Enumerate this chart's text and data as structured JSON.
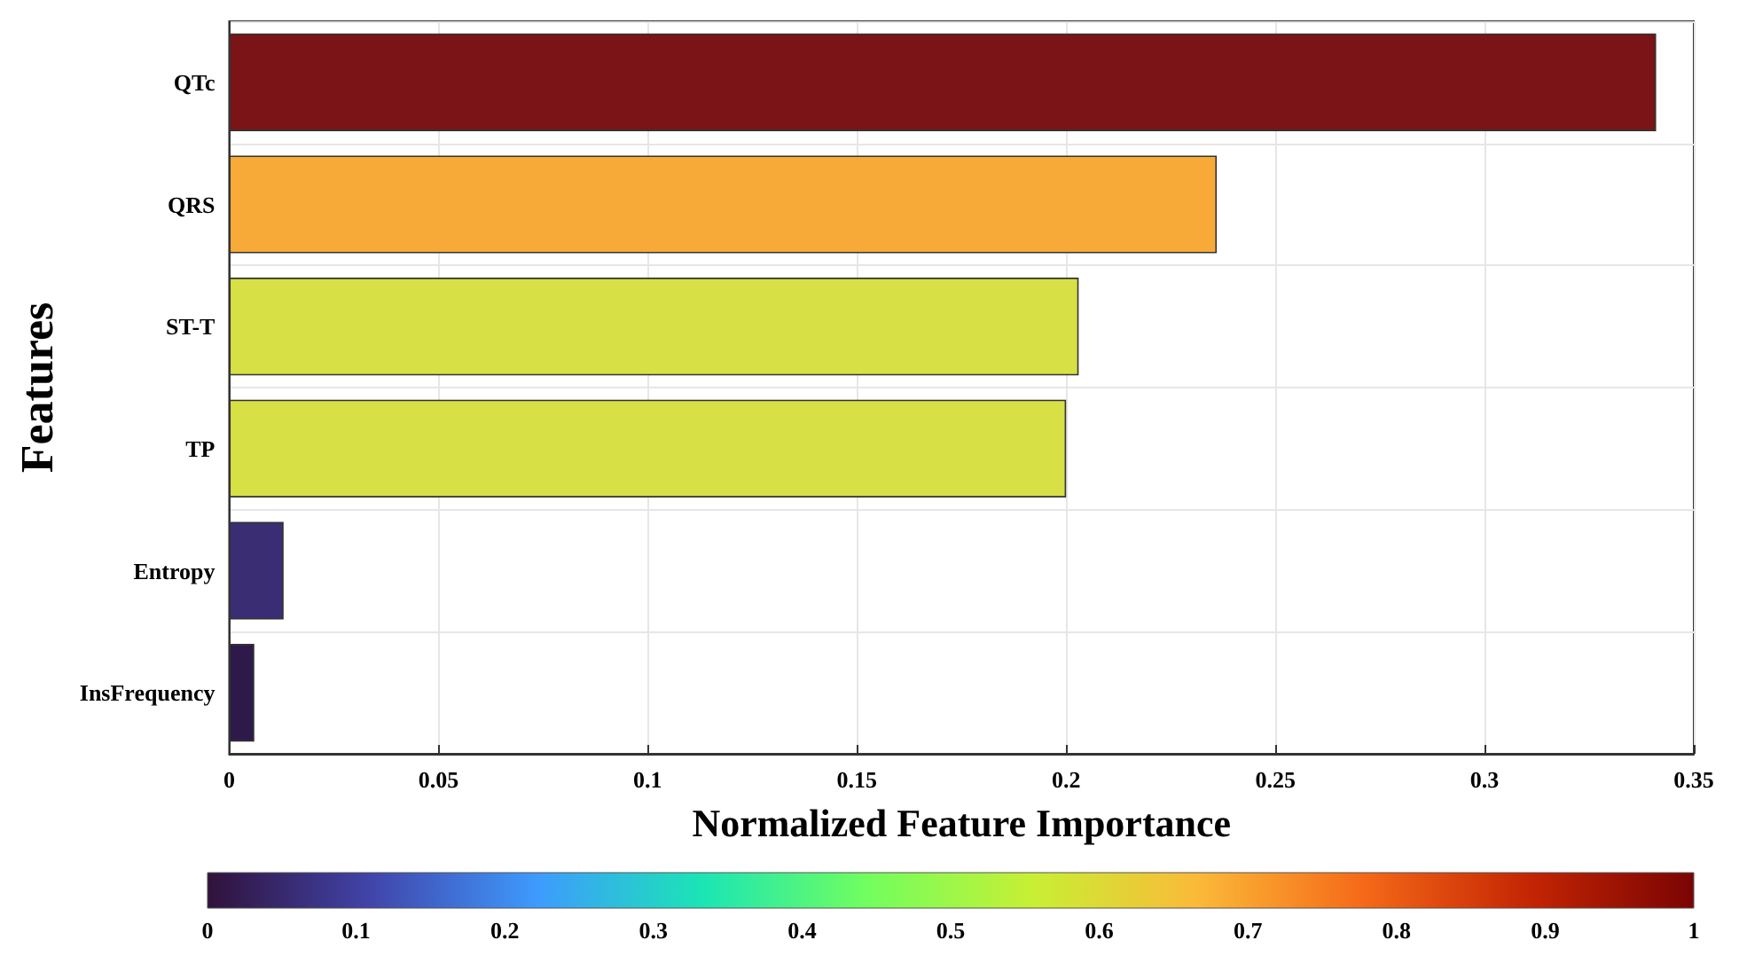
{
  "chart_data": {
    "type": "bar",
    "orientation": "horizontal",
    "xlabel": "Normalized Feature Importance",
    "ylabel": "Features",
    "categories": [
      "QTc",
      "QRS",
      "ST-T",
      "TP",
      "Entropy",
      "InsFrequency"
    ],
    "values": [
      0.341,
      0.236,
      0.203,
      0.2,
      0.013,
      0.006
    ],
    "colors": [
      "#7a1416",
      "#f8aa38",
      "#d7e044",
      "#d7e044",
      "#3a2d74",
      "#2d1a4a"
    ],
    "xlim": [
      0,
      0.35
    ],
    "xticks": [
      0,
      0.05,
      0.1,
      0.15,
      0.2,
      0.25,
      0.3,
      0.35
    ],
    "grid": true,
    "clim": [
      0,
      1
    ],
    "cticks": [
      0,
      0.1,
      0.2,
      0.3,
      0.4,
      0.5,
      0.6,
      0.7,
      0.8,
      0.9,
      1
    ]
  }
}
